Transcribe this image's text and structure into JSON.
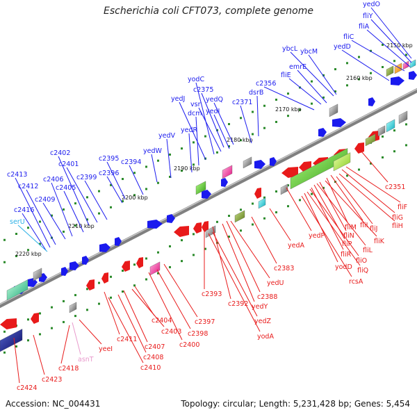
{
  "title": "Escherichia coli CFT073, complete genome",
  "footer": {
    "accession": "Accession: NC_004431",
    "topology": "Topology: circular; Length: 5,231,428 bp; Genes: 5,454"
  },
  "colors": {
    "forward_genes": "#1a1aee",
    "reverse_genes": "#e81a1a",
    "rna_label": "#2ab0e6",
    "pseudo_label": "#e899cc",
    "backbone": "#808080",
    "tick": "#2a8a2a"
  },
  "kbp_marks": [
    "2150 kbp",
    "2160 kbp",
    "2170 kbp",
    "2180 kbp",
    "2190 kbp",
    "2200 kbp",
    "2210 kbp",
    "2220 kbp"
  ],
  "forward_labels": [
    "yedO",
    "fliY",
    "fliA",
    "fliC",
    "yedD",
    "ybcL",
    "ybcM",
    "emrE",
    "fliE",
    "c2356",
    "dsrB",
    "c2371",
    "yedQ",
    "yedI",
    "c2375",
    "vsr",
    "yodC",
    "yedJ",
    "dcm",
    "yedR",
    "yedV",
    "yedW",
    "c2394",
    "c2395",
    "c2396",
    "c2399",
    "c2401",
    "c2402",
    "c2405",
    "c2406",
    "c2409",
    "c2412",
    "c2413",
    "c2416",
    "serU"
  ],
  "reverse_labels": [
    "c2351",
    "fliF",
    "fliG",
    "fliH",
    "fliJ",
    "fliI",
    "fliM",
    "fliK",
    "fliN",
    "fliL",
    "fliP",
    "fliR",
    "fliO",
    "fliQ",
    "yodD",
    "rcsA",
    "yedP",
    "yedA",
    "c2383",
    "yedU",
    "c2388",
    "yedY",
    "c2392",
    "c2393",
    "yedZ",
    "yodA",
    "c2397",
    "c2398",
    "c2400",
    "c2404",
    "c2403",
    "c2407",
    "c2411",
    "c2408",
    "c2410",
    "yeeI",
    "asnT",
    "c2418",
    "c2423",
    "c2424"
  ]
}
